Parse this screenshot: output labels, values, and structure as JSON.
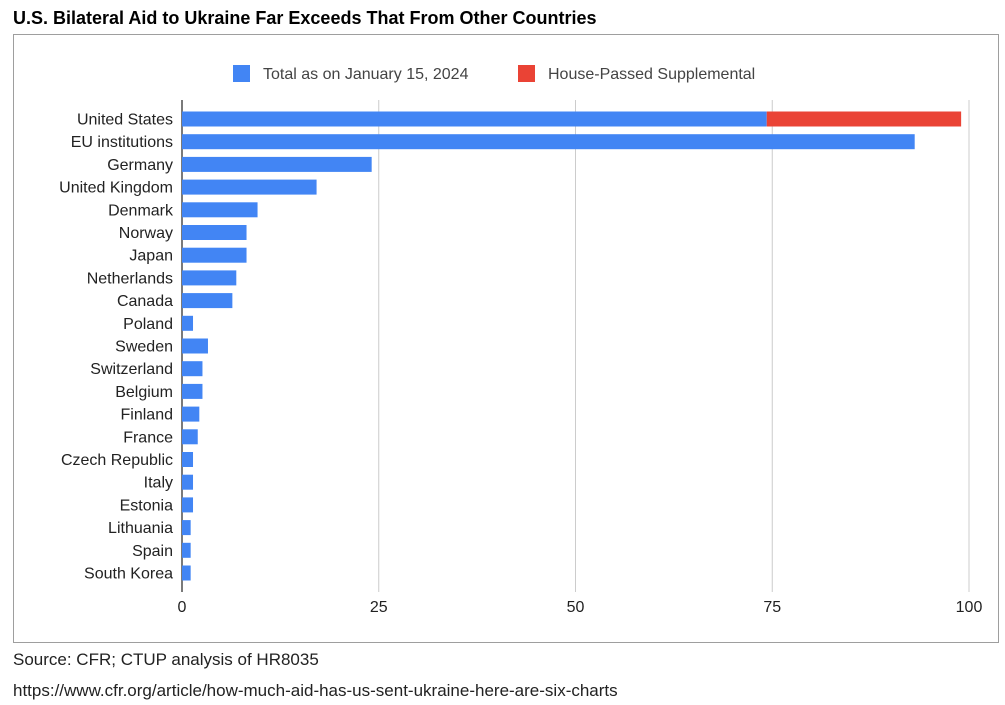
{
  "page": {
    "title": "U.S. Bilateral Aid to Ukraine Far Exceeds That From Other Countries",
    "source": "Source: CFR; CTUP analysis of HR8035",
    "url": "https://www.cfr.org/article/how-much-aid-has-us-sent-ukraine-here-are-six-charts"
  },
  "chart_data": {
    "type": "bar",
    "orientation": "horizontal",
    "stacked": true,
    "title": "U.S. Bilateral Aid to Ukraine Far Exceeds That From Other Countries",
    "xlabel": "",
    "ylabel": "",
    "xlim": [
      0,
      100
    ],
    "xticks": [
      0,
      25,
      50,
      75,
      100
    ],
    "grid": true,
    "legend_position": "top",
    "categories": [
      "United States",
      "EU institutions",
      "Germany",
      "United Kingdom",
      "Denmark",
      "Norway",
      "Japan",
      "Netherlands",
      "Canada",
      "Poland",
      "Sweden",
      "Switzerland",
      "Belgium",
      "Finland",
      "France",
      "Czech Republic",
      "Italy",
      "Estonia",
      "Lithuania",
      "Spain",
      "South Korea"
    ],
    "series": [
      {
        "name": "Total as on January 15, 2024",
        "color": "#4285f4",
        "values": [
          74.3,
          93.1,
          24.1,
          17.1,
          9.6,
          8.2,
          8.2,
          6.9,
          6.4,
          1.4,
          3.3,
          2.6,
          2.6,
          2.2,
          2.0,
          1.4,
          1.4,
          1.4,
          1.1,
          1.1,
          1.1
        ]
      },
      {
        "name": "House-Passed Supplemental",
        "color": "#ea4335",
        "values": [
          24.7,
          0,
          0,
          0,
          0,
          0,
          0,
          0,
          0,
          0,
          0,
          0,
          0,
          0,
          0,
          0,
          0,
          0,
          0,
          0,
          0
        ]
      }
    ]
  }
}
